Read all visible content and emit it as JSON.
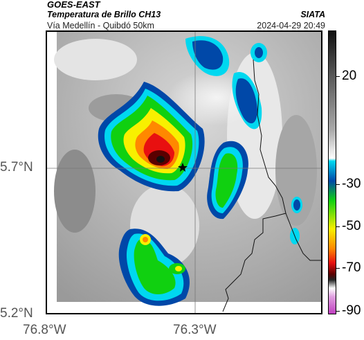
{
  "header": {
    "satellite": "GOES-EAST",
    "product": "Temperatura de Brillo CH13",
    "region": "Vía Medellín - Quibdó 50km",
    "agency": "SIATA",
    "datetime": "2024-04-29 20:49"
  },
  "axes": {
    "latitude_labels": [
      "5.7°N",
      "5.2°N"
    ],
    "longitude_labels": [
      "76.8°W",
      "76.3°W"
    ]
  },
  "colorbar": {
    "tick_labels": [
      "20",
      "-30",
      "-50",
      "-70",
      "-90"
    ],
    "colors": {
      "coldest_top": "#111111",
      "grey_high": "#8a8a8a",
      "white": "#ffffff",
      "cyan": "#00d8f0",
      "blue": "#0048a8",
      "green": "#10d010",
      "yellow": "#f8f000",
      "orange": "#ff8800",
      "red": "#e81010",
      "dark_red": "#5a0000",
      "magenta": "#c040c0"
    }
  },
  "map": {
    "marker_icon": "star-icon",
    "background_color": "#c9c9c9",
    "border_color": "#111111"
  }
}
